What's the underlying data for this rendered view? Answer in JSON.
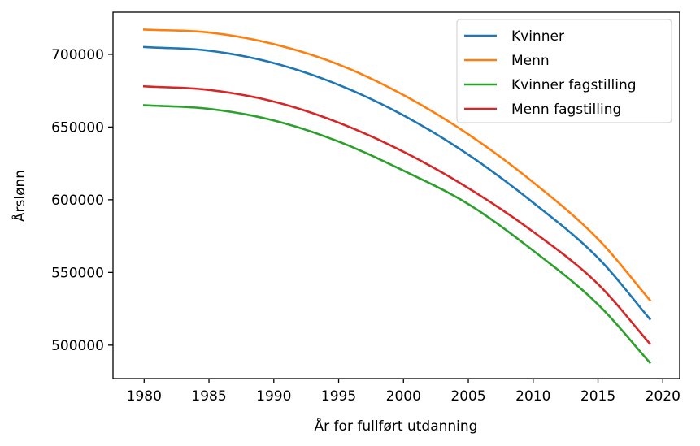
{
  "chart_data": {
    "type": "line",
    "title": "",
    "xlabel": "År for fullført utdanning",
    "ylabel": "Årslønn",
    "xlim": [
      1977.6,
      2021.3
    ],
    "ylim": [
      477000,
      729000
    ],
    "xticks": [
      1980,
      1985,
      1990,
      1995,
      2000,
      2005,
      2010,
      2015,
      2020
    ],
    "yticks": [
      500000,
      550000,
      600000,
      650000,
      700000
    ],
    "grid": false,
    "legend_position": "top-right",
    "series": [
      {
        "name": "Kvinner",
        "color": "#1f77b4",
        "x": [
          1980,
          1985,
          1990,
          1995,
          2000,
          2005,
          2010,
          2015,
          2019
        ],
        "y": [
          705000,
          702500,
          694000,
          679000,
          658000,
          631000,
          598000,
          560000,
          518000
        ]
      },
      {
        "name": "Menn",
        "color": "#ff7f0e",
        "x": [
          1980,
          1985,
          1990,
          1995,
          2000,
          2005,
          2010,
          2015,
          2019
        ],
        "y": [
          717000,
          715000,
          707000,
          693000,
          672000,
          645000,
          612000,
          573000,
          531000
        ]
      },
      {
        "name": "Kvinner fagstilling",
        "color": "#2ca02c",
        "x": [
          1980,
          1985,
          1990,
          1995,
          2000,
          2005,
          2010,
          2015,
          2019
        ],
        "y": [
          665000,
          662500,
          654500,
          640000,
          620000,
          597000,
          565000,
          528000,
          488000
        ]
      },
      {
        "name": "Menn fagstilling",
        "color": "#d62728",
        "x": [
          1980,
          1985,
          1990,
          1995,
          2000,
          2005,
          2010,
          2015,
          2019
        ],
        "y": [
          678000,
          675500,
          667500,
          653000,
          633000,
          608000,
          578000,
          542000,
          501000
        ]
      }
    ]
  }
}
